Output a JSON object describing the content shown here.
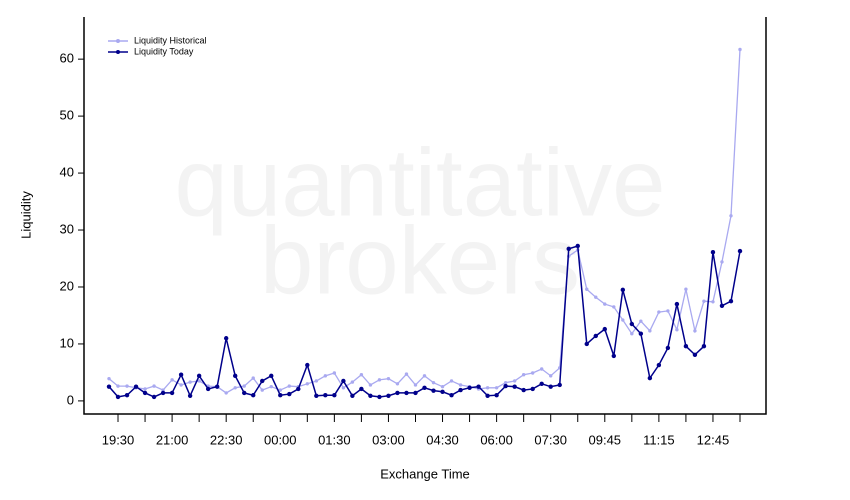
{
  "chart_data": {
    "type": "line",
    "watermark": [
      "quantitative",
      "brokers"
    ],
    "xlabel": "Exchange Time",
    "ylabel": "Liquidity",
    "categories": [
      null,
      "19:30",
      null,
      null,
      null,
      null,
      null,
      "21:00",
      null,
      null,
      null,
      null,
      null,
      "22:30",
      null,
      null,
      null,
      null,
      null,
      "00:00",
      null,
      null,
      null,
      null,
      null,
      "01:30",
      null,
      null,
      null,
      null,
      null,
      "03:00",
      null,
      null,
      null,
      null,
      null,
      "04:30",
      null,
      null,
      null,
      null,
      null,
      "06:00",
      null,
      null,
      null,
      null,
      null,
      "07:30",
      null,
      null,
      null,
      null,
      null,
      "09:45",
      null,
      null,
      null,
      null,
      null,
      "11:15",
      null,
      null,
      null,
      null,
      null,
      "12:45",
      null,
      null,
      null
    ],
    "series": [
      {
        "name": "Liquidity Historical",
        "color": "#a9a9f0",
        "values": [
          3.9,
          2.6,
          2.6,
          2.3,
          2.1,
          2.6,
          1.9,
          3.7,
          2.8,
          3.3,
          3.5,
          2.6,
          2.5,
          1.4,
          2.3,
          2.6,
          4.0,
          1.9,
          2.5,
          1.9,
          2.6,
          2.5,
          3.0,
          3.5,
          4.4,
          4.9,
          2.3,
          3.3,
          4.6,
          2.8,
          3.7,
          3.9,
          3.0,
          4.7,
          2.8,
          4.4,
          3.2,
          2.5,
          3.5,
          2.8,
          2.5,
          2.1,
          2.3,
          2.3,
          3.2,
          3.5,
          4.6,
          4.9,
          5.6,
          4.4,
          5.8,
          25.4,
          26.5,
          19.6,
          18.2,
          17.0,
          16.5,
          14.2,
          11.8,
          14.0,
          12.3,
          15.6,
          15.8,
          12.5,
          19.6,
          12.3,
          17.5,
          17.4,
          24.4,
          32.5,
          61.7
        ]
      },
      {
        "name": "Liquidity Today",
        "color": "#00008b",
        "values": [
          2.5,
          0.7,
          1.0,
          2.5,
          1.4,
          0.7,
          1.4,
          1.4,
          4.6,
          0.9,
          4.4,
          2.1,
          2.5,
          11.0,
          4.4,
          1.4,
          1.0,
          3.5,
          4.4,
          1.0,
          1.2,
          2.1,
          6.3,
          0.9,
          1.0,
          1.0,
          3.5,
          0.9,
          2.1,
          0.9,
          0.7,
          0.9,
          1.4,
          1.4,
          1.4,
          2.3,
          1.8,
          1.6,
          1.0,
          1.9,
          2.3,
          2.5,
          0.9,
          1.0,
          2.6,
          2.5,
          1.9,
          2.1,
          3.0,
          2.5,
          2.8,
          26.7,
          27.2,
          10.0,
          11.4,
          12.6,
          7.9,
          19.5,
          13.5,
          11.8,
          4.0,
          6.3,
          9.3,
          17.0,
          9.6,
          8.1,
          9.6,
          26.1,
          16.7,
          17.5,
          26.3
        ]
      }
    ],
    "ylim": [
      -2.3,
      67.4
    ],
    "yticks": [
      0,
      10,
      20,
      30,
      40,
      50,
      60
    ],
    "legend": "top-left"
  }
}
